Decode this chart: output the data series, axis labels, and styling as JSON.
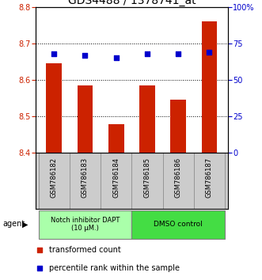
{
  "title": "GDS4488 / 1378741_at",
  "categories": [
    "GSM786182",
    "GSM786183",
    "GSM786184",
    "GSM786185",
    "GSM786186",
    "GSM786187"
  ],
  "bar_values": [
    8.645,
    8.585,
    8.478,
    8.585,
    8.545,
    8.76
  ],
  "percentile_values": [
    68,
    67,
    65,
    68,
    68,
    69
  ],
  "ylim_left": [
    8.4,
    8.8
  ],
  "ylim_right": [
    0,
    100
  ],
  "yticks_left": [
    8.4,
    8.5,
    8.6,
    8.7,
    8.8
  ],
  "yticks_right": [
    0,
    25,
    50,
    75,
    100
  ],
  "ytick_labels_right": [
    "0",
    "25",
    "50",
    "75",
    "100%"
  ],
  "bar_color": "#cc2200",
  "dot_color": "#0000cc",
  "group1_label": "Notch inhibitor DAPT\n(10 μM.)",
  "group2_label": "DMSO control",
  "group1_color": "#aaffaa",
  "group2_color": "#44dd44",
  "group1_indices": [
    0,
    1,
    2
  ],
  "group2_indices": [
    3,
    4,
    5
  ],
  "agent_label": "agent",
  "legend_bar_label": "transformed count",
  "legend_dot_label": "percentile rank within the sample",
  "bar_width": 0.5,
  "tick_label_color_left": "#cc2200",
  "tick_label_color_right": "#0000cc",
  "grid_color": "#000000",
  "background_color": "#ffffff",
  "plot_bg_color": "#ffffff",
  "xticklabel_area_color": "#cccccc",
  "title_fontsize": 10,
  "axis_fontsize": 7,
  "legend_fontsize": 7
}
